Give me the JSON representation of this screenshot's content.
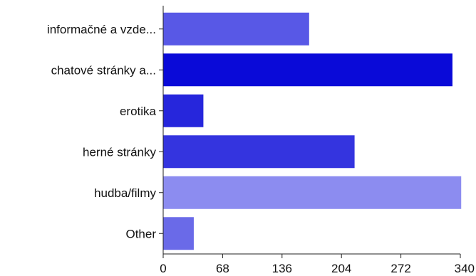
{
  "chart_data": {
    "type": "bar",
    "orientation": "horizontal",
    "categories": [
      "informačné a vzde...",
      "chatové stránky a...",
      "erotika",
      "herné stránky",
      "hudba/filmy",
      "Other"
    ],
    "values": [
      167,
      331,
      46,
      219,
      341,
      35
    ],
    "colors": [
      "#5858e6",
      "#0a0ad8",
      "#2626dc",
      "#3434df",
      "#8c8cf0",
      "#6a6ae8"
    ],
    "x_ticks": [
      "0",
      "68",
      "136",
      "204",
      "272",
      "340"
    ],
    "xlim": [
      0,
      340
    ],
    "grid": false,
    "legend": "none"
  }
}
